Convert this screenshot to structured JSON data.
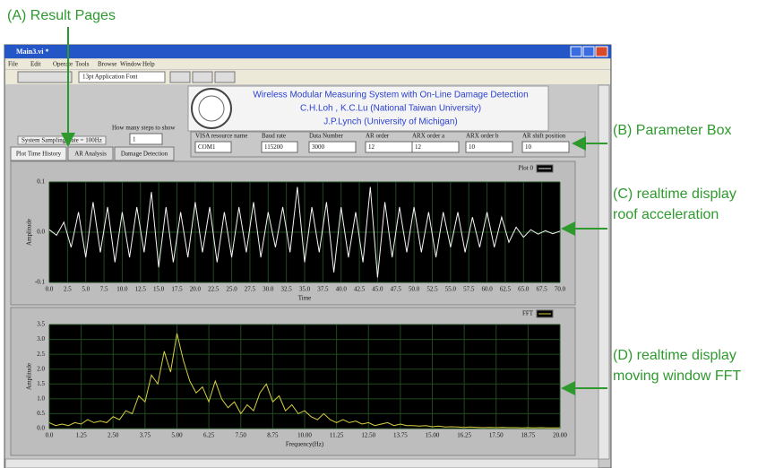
{
  "annotations": {
    "result_pages": "(A) Result Pages",
    "parameter_box": "(B) Parameter Box",
    "roof_line1": "(C) realtime display",
    "roof_line2": "roof acceleration",
    "fft_line1": "(D) realtime display",
    "fft_line2": "moving window FFT"
  },
  "window": {
    "title": "Main3.vi *",
    "menu": [
      "File",
      "Edit",
      "Operate",
      "Tools",
      "Browse",
      "Window",
      "Help"
    ],
    "font": "13pt Application Font"
  },
  "header": {
    "line1": "Wireless Modular Measuring System with On-Line Damage Detection",
    "line2": "C.H.Loh , K.C.Lu (National Taiwan University)",
    "line3": "J.P.Lynch (University of Michigan)"
  },
  "controls": {
    "sampling_rate": "System Sampling Rate = 100Hz",
    "steps_label": "How many steps to show",
    "steps_value": "1",
    "params": [
      {
        "label": "VISA resource name",
        "value": "COM1"
      },
      {
        "label": "Baud rate",
        "value": "115200"
      },
      {
        "label": "Data Number",
        "value": "3000"
      },
      {
        "label": "AR order",
        "value": "12"
      },
      {
        "label": "ARX order a",
        "value": "12"
      },
      {
        "label": "ARX order b",
        "value": "10"
      },
      {
        "label": "AR shift position",
        "value": "10"
      }
    ]
  },
  "tabs": [
    "Plot Time History",
    "AR Analysis",
    "Damage Detection"
  ],
  "chart_data": [
    {
      "type": "line",
      "xlabel": "Time",
      "ylabel": "Amplitude",
      "grid": true,
      "x": [
        0,
        1,
        2,
        3,
        4,
        5,
        6,
        7,
        8,
        9,
        10,
        11,
        12,
        13,
        14,
        15,
        16,
        17,
        18,
        19,
        20,
        21,
        22,
        23,
        24,
        25,
        26,
        27,
        28,
        29,
        30,
        31,
        32,
        33,
        34,
        35,
        36,
        37,
        38,
        39,
        40,
        41,
        42,
        43,
        44,
        45,
        46,
        47,
        48,
        49,
        50,
        51,
        52,
        53,
        54,
        55,
        56,
        57,
        58,
        59,
        60,
        61,
        62,
        63,
        64,
        65,
        66,
        67,
        68,
        69,
        70
      ],
      "series": [
        {
          "name": "Plot 0",
          "color": "#f4f4f4",
          "values": [
            0.005,
            -0.006,
            0.02,
            -0.03,
            0.04,
            -0.05,
            0.06,
            -0.04,
            0.05,
            -0.06,
            0.04,
            -0.05,
            0.05,
            -0.04,
            0.08,
            -0.07,
            0.05,
            -0.06,
            0.04,
            -0.05,
            0.06,
            -0.04,
            0.05,
            -0.06,
            0.04,
            -0.05,
            0.05,
            -0.04,
            0.06,
            -0.05,
            0.04,
            -0.03,
            0.05,
            -0.04,
            0.09,
            -0.06,
            0.05,
            -0.04,
            0.06,
            -0.08,
            0.05,
            -0.05,
            0.04,
            -0.06,
            0.09,
            -0.09,
            0.06,
            -0.05,
            0.05,
            -0.04,
            0.05,
            -0.04,
            0.04,
            -0.05,
            0.04,
            -0.03,
            0.04,
            -0.04,
            0.03,
            -0.03,
            0.04,
            -0.03,
            0.03,
            -0.02,
            0.01,
            -0.01,
            0.005,
            -0.004,
            0.003,
            -0.003,
            0.002
          ]
        }
      ],
      "xlim": [
        0,
        70
      ],
      "ylim": [
        -0.1,
        0.1
      ],
      "yticks": [
        -0.1,
        {
          "value": 0,
          "label": "0.0"
        },
        0.1
      ],
      "xticks": [
        {
          "value": 0,
          "label": "0.0"
        },
        2.5,
        {
          "value": 5,
          "label": "5.0"
        },
        7.5,
        {
          "value": 10,
          "label": "10.0"
        },
        12.5,
        {
          "value": 15,
          "label": "15.0"
        },
        17.5,
        {
          "value": 20,
          "label": "20.0"
        },
        22.5,
        {
          "value": 25,
          "label": "25.0"
        },
        27.5,
        {
          "value": 30,
          "label": "30.0"
        },
        32.5,
        {
          "value": 35,
          "label": "35.0"
        },
        37.5,
        {
          "value": 40,
          "label": "40.0"
        },
        42.5,
        {
          "value": 45,
          "label": "45.0"
        },
        47.5,
        {
          "value": 50,
          "label": "50.0"
        },
        52.5,
        {
          "value": 55,
          "label": "55.0"
        },
        57.5,
        {
          "value": 60,
          "label": "60.0"
        },
        62.5,
        {
          "value": 65,
          "label": "65.0"
        },
        67.5,
        {
          "value": 70,
          "label": "70.0"
        }
      ]
    },
    {
      "type": "line",
      "xlabel": "Frequency(Hz)",
      "ylabel": "Amplitude",
      "grid": true,
      "x": [
        0,
        0.25,
        0.5,
        0.75,
        1,
        1.25,
        1.5,
        1.75,
        2,
        2.25,
        2.5,
        2.75,
        3,
        3.25,
        3.5,
        3.75,
        4,
        4.25,
        4.5,
        4.75,
        5,
        5.25,
        5.5,
        5.75,
        6,
        6.25,
        6.5,
        6.75,
        7,
        7.25,
        7.5,
        7.75,
        8,
        8.25,
        8.5,
        8.75,
        9,
        9.25,
        9.5,
        9.75,
        10,
        10.25,
        10.5,
        10.75,
        11,
        11.25,
        11.5,
        11.75,
        12,
        12.25,
        12.5,
        12.75,
        13,
        13.25,
        13.5,
        13.75,
        14,
        14.25,
        14.5,
        14.75,
        15,
        15.25,
        15.5,
        15.75,
        16,
        16.25,
        16.5,
        16.75,
        17,
        17.25,
        17.5,
        17.75,
        18,
        18.25,
        18.5,
        18.75,
        19,
        19.25,
        19.5,
        19.75,
        20
      ],
      "series": [
        {
          "name": "FFT",
          "color": "#d8d040",
          "values": [
            0.2,
            0.1,
            0.15,
            0.1,
            0.2,
            0.15,
            0.3,
            0.2,
            0.25,
            0.2,
            0.4,
            0.3,
            0.6,
            0.5,
            1.1,
            0.9,
            1.8,
            1.5,
            2.6,
            1.9,
            3.2,
            2.3,
            1.6,
            1.2,
            1.4,
            0.9,
            1.6,
            1.0,
            0.7,
            0.9,
            0.5,
            0.8,
            0.6,
            1.2,
            1.5,
            0.9,
            1.1,
            0.6,
            0.8,
            0.5,
            0.6,
            0.4,
            0.3,
            0.5,
            0.3,
            0.2,
            0.3,
            0.2,
            0.25,
            0.15,
            0.2,
            0.1,
            0.15,
            0.2,
            0.1,
            0.15,
            0.1,
            0.1,
            0.08,
            0.1,
            0.06,
            0.08,
            0.05,
            0.06,
            0.05,
            0.04,
            0.05,
            0.04,
            0.03,
            0.04,
            0.03,
            0.04,
            0.03,
            0.03,
            0.02,
            0.03,
            0.02,
            0.03,
            0.02,
            0.02,
            0.02
          ]
        }
      ],
      "xlim": [
        0,
        20
      ],
      "ylim": [
        0,
        3.5
      ],
      "yticks": [
        {
          "value": 0,
          "label": "0.0"
        },
        0.5,
        {
          "value": 1,
          "label": "1.0"
        },
        1.5,
        {
          "value": 2,
          "label": "2.0"
        },
        2.5,
        {
          "value": 3,
          "label": "3.0"
        },
        3.5
      ],
      "xticks": [
        {
          "value": 0,
          "label": "0.0"
        },
        1.25,
        {
          "value": 2.5,
          "label": "2.50"
        },
        3.75,
        {
          "value": 5,
          "label": "5.00"
        },
        6.25,
        {
          "value": 7.5,
          "label": "7.50"
        },
        8.75,
        {
          "value": 10,
          "label": "10.00"
        },
        11.25,
        {
          "value": 12.5,
          "label": "12.50"
        },
        13.75,
        {
          "value": 15,
          "label": "15.00"
        },
        16.25,
        {
          "value": 17.5,
          "label": "17.50"
        },
        18.75,
        {
          "value": 20,
          "label": "20.00"
        }
      ]
    }
  ]
}
